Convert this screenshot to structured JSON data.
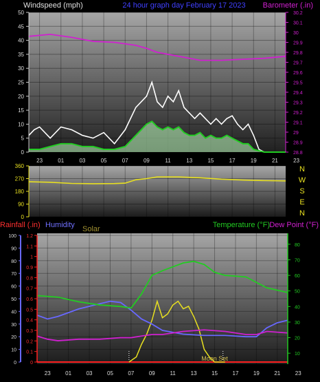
{
  "chart_data": [
    {
      "type": "line",
      "title": "24 hour graph day   February 17 2023",
      "left_axis_label": "Windspeed (mph)",
      "right_axis_label": "Barometer (.in)",
      "x_tick_labels": [
        "23",
        "01",
        "03",
        "05",
        "07",
        "09",
        "11",
        "13",
        "15",
        "17",
        "19",
        "21",
        "23"
      ],
      "left_ticks": [
        "0",
        "5",
        "10",
        "15",
        "20",
        "25",
        "30",
        "35",
        "40",
        "45",
        "50"
      ],
      "ylim_left": [
        0,
        50
      ],
      "right_ticks": [
        "28.8",
        "28.9",
        "29",
        "29.1",
        "29.2",
        "29.3",
        "29.4",
        "29.5",
        "29.6",
        "29.7",
        "29.8",
        "29.9",
        "30",
        "30.1",
        "30.2"
      ],
      "ylim_right": [
        28.8,
        30.2
      ],
      "x_range_hours": [
        22,
        46
      ],
      "grid": true,
      "colors": {
        "barometer": "#d020d0",
        "gust": "#ffffff",
        "windspeed": "#22cc22",
        "fill": "#c0ffc0",
        "title": "#4040ff",
        "left_label": "#e0e0e0"
      },
      "series": [
        {
          "name": "Barometer (.in)",
          "axis": "right",
          "x": [
            22,
            24,
            26,
            28,
            30,
            32,
            33,
            34,
            36,
            38,
            39,
            40,
            42,
            44,
            46
          ],
          "y": [
            29.96,
            29.98,
            29.95,
            29.91,
            29.9,
            29.87,
            29.84,
            29.8,
            29.76,
            29.72,
            29.72,
            29.72,
            29.73,
            29.74,
            29.76
          ]
        },
        {
          "axis": "left",
          "role": "gust",
          "x": [
            22,
            22.5,
            23,
            24,
            25,
            26,
            27,
            28,
            29,
            30,
            31,
            32,
            32.5,
            33,
            33.5,
            34,
            34.5,
            35,
            35.5,
            36,
            36.5,
            37,
            37.5,
            38,
            38.5,
            39,
            39.5,
            40,
            40.5,
            41,
            41.5,
            42,
            42.5,
            43,
            43.5,
            44,
            45,
            46
          ],
          "y": [
            6,
            8,
            9,
            5,
            9,
            8,
            6,
            5,
            7,
            3,
            8,
            16,
            18,
            20,
            25,
            18,
            16,
            20,
            18,
            22,
            16,
            14,
            12,
            14,
            12,
            10,
            12,
            10,
            12,
            13,
            10,
            8,
            10,
            6,
            1,
            0,
            0,
            0
          ]
        },
        {
          "axis": "left",
          "role": "average",
          "x": [
            22,
            23,
            24,
            25,
            26,
            27,
            28,
            29,
            30,
            31,
            32,
            32.5,
            33,
            33.5,
            34,
            34.5,
            35,
            35.5,
            36,
            36.5,
            37,
            37.5,
            38,
            38.5,
            39,
            39.5,
            40,
            40.5,
            41,
            41.5,
            42,
            42.5,
            43,
            44,
            45,
            46
          ],
          "y": [
            1,
            1,
            2,
            3,
            3,
            2,
            2,
            1,
            1,
            2,
            6,
            8,
            10,
            11,
            9,
            8,
            9,
            8,
            9,
            7,
            6,
            6,
            7,
            5,
            6,
            5,
            5,
            6,
            5,
            4,
            3,
            3,
            1,
            0,
            0,
            0
          ]
        }
      ]
    },
    {
      "type": "line",
      "right_axis_letters": [
        "N",
        "W",
        "S",
        "E",
        "N"
      ],
      "left_ticks": [
        "0",
        "90",
        "180",
        "270",
        "360"
      ],
      "ylim": [
        0,
        360
      ],
      "x_range_hours": [
        22,
        46
      ],
      "colors": {
        "direction": "#e8e020",
        "right_letters": "#e8e020"
      },
      "series": [
        {
          "x": [
            22,
            24,
            26,
            28,
            30,
            31,
            32,
            33,
            34,
            36,
            38,
            40,
            42,
            44,
            46
          ],
          "y": [
            248,
            244,
            236,
            234,
            235,
            238,
            262,
            270,
            282,
            282,
            276,
            266,
            260,
            256,
            254
          ]
        }
      ]
    },
    {
      "type": "line",
      "left_labels": [
        {
          "text": "Rainfall (.in)",
          "color": "#ff3030"
        },
        {
          "text": "Humidity",
          "color": "#7070ff"
        },
        {
          "text": "Solar",
          "color": "#a09030"
        }
      ],
      "right_labels": [
        {
          "text": "Temperature (°F)",
          "color": "#22cc22"
        },
        {
          "text": "Dew Point (°F)",
          "color": "#d020d0"
        }
      ],
      "humidity_ticks": [
        "0",
        "10",
        "20",
        "30",
        "40",
        "50",
        "60",
        "70",
        "80",
        "90",
        "100"
      ],
      "rain_ticks": [
        "0",
        "0.1",
        "0.2",
        "0.3",
        "0.4",
        "0.5",
        "0.6",
        "0.7",
        "0.8",
        "0.9",
        "1",
        "1.1",
        "1.2"
      ],
      "temp_ticks": [
        "10",
        "20",
        "30",
        "40",
        "50",
        "60",
        "70",
        "80"
      ],
      "ylim_humidity": [
        0,
        100
      ],
      "ylim_rain": [
        0,
        1.2
      ],
      "ylim_temp": [
        3,
        87
      ],
      "x_tick_labels": [
        "23",
        "01",
        "03",
        "05",
        "07",
        "09",
        "11",
        "13",
        "15",
        "17",
        "19",
        "21",
        "23"
      ],
      "x_range_hours": [
        22,
        46
      ],
      "annotation": "Moon Set",
      "annotation_hour": 39,
      "colors": {
        "temperature": "#22cc22",
        "dew_point": "#d020d0",
        "humidity": "#6868ff",
        "solar": "#e8e020",
        "rain": "#ff2020",
        "markers": "#ffffff",
        "annotation": "#d4c050"
      },
      "series": [
        {
          "name": "Temperature (°F)",
          "axis": "temp",
          "x": [
            22,
            24,
            26,
            28,
            30,
            31,
            32,
            33,
            34,
            36,
            37,
            38,
            39,
            40,
            42,
            44,
            46
          ],
          "y": [
            47,
            46,
            43,
            41,
            40,
            39,
            48,
            60,
            63,
            68,
            69,
            67,
            62,
            60,
            59,
            52,
            49
          ]
        },
        {
          "name": "Dew Point (°F)",
          "axis": "temp",
          "x": [
            22,
            23,
            24,
            26,
            28,
            30,
            31,
            32,
            33,
            34,
            36,
            38,
            40,
            42,
            43,
            44,
            46
          ],
          "y": [
            21,
            19,
            18,
            19,
            19,
            20,
            20,
            21,
            22,
            22,
            24,
            25,
            24,
            22,
            22,
            24,
            23
          ]
        },
        {
          "name": "Humidity",
          "axis": "humidity",
          "x": [
            22,
            23,
            24,
            26,
            27,
            29,
            30,
            31,
            32,
            33,
            34,
            36,
            38,
            40,
            42,
            43,
            44,
            45,
            46
          ],
          "y": [
            37,
            34,
            36,
            42,
            44,
            48,
            47,
            41,
            34,
            30,
            25,
            22,
            21,
            21,
            20,
            20,
            27,
            31,
            33
          ]
        },
        {
          "name": "Solar",
          "axis": "humidity",
          "x": [
            30.8,
            31.5,
            32,
            32.5,
            33,
            33.5,
            34,
            34.5,
            35,
            35.5,
            36,
            36.5,
            37,
            37.5,
            38,
            38.5,
            39,
            40
          ],
          "y": [
            0,
            4,
            14,
            22,
            33,
            48,
            35,
            38,
            45,
            48,
            42,
            44,
            36,
            26,
            10,
            4,
            0,
            0
          ]
        },
        {
          "name": "Rainfall (.in)",
          "axis": "rain",
          "x": [
            22,
            46
          ],
          "y": [
            0,
            0
          ]
        }
      ]
    }
  ]
}
